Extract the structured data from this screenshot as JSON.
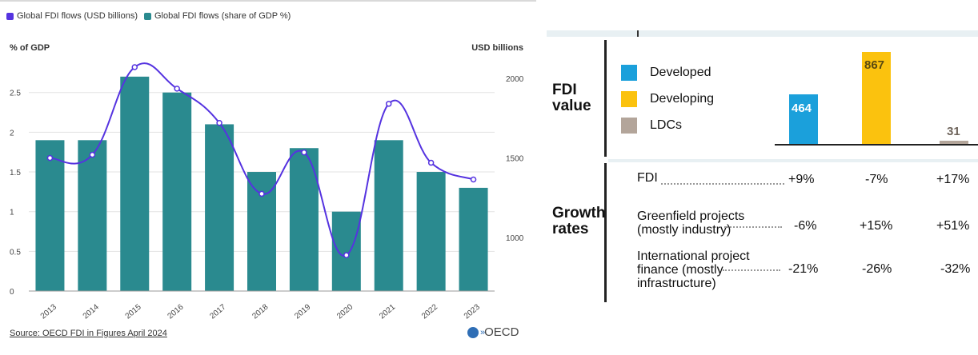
{
  "left_chart": {
    "legend": [
      {
        "label": "Global FDI flows (USD billions)",
        "color": "#5533e0"
      },
      {
        "label": "Global FDI flows (share of GDP %)",
        "color": "#2a8a8f"
      }
    ],
    "left_axis_title": "% of GDP",
    "right_axis_title": "USD billions",
    "source": "Source: OECD FDI in Figures April 2024",
    "logo_text": "OECD"
  },
  "chart_data": [
    {
      "type": "bar",
      "categories": [
        "2013",
        "2014",
        "2015",
        "2016",
        "2017",
        "2018",
        "2019",
        "2020",
        "2021",
        "2022",
        "2023"
      ],
      "series": [
        {
          "name": "Global FDI flows (share of GDP %)",
          "axis": "left",
          "type": "bar",
          "color": "#2a8a8f",
          "values": [
            1.9,
            1.9,
            2.7,
            2.5,
            2.1,
            1.5,
            1.8,
            1.0,
            1.9,
            1.5,
            1.3
          ]
        },
        {
          "name": "Global FDI flows (USD billions)",
          "axis": "right",
          "type": "line",
          "color": "#5533e0",
          "values": [
            1500,
            1520,
            2070,
            1935,
            1720,
            1275,
            1535,
            890,
            1840,
            1470,
            1365
          ]
        }
      ],
      "left_ylim": [
        0,
        2.9
      ],
      "left_ticks": [
        0,
        0.5,
        1,
        1.5,
        2,
        2.5
      ],
      "right_ylim": [
        665,
        2110
      ],
      "right_ticks": [
        1000,
        1500,
        2000
      ],
      "grid": true
    },
    {
      "type": "bar",
      "title": "FDI value",
      "categories": [
        "Developed",
        "Developing",
        "LDCs"
      ],
      "values": [
        464,
        867,
        31
      ],
      "colors": [
        "#1ba0db",
        "#fbc20e",
        "#b3a59a"
      ]
    }
  ],
  "right_panel": {
    "fdi_title": [
      "FDI",
      "value"
    ],
    "legend": [
      {
        "label": "Developed",
        "color": "#1ba0db"
      },
      {
        "label": "Developing",
        "color": "#fbc20e"
      },
      {
        "label": "LDCs",
        "color": "#b3a59a"
      }
    ],
    "bar_labels": [
      "464",
      "867",
      "31"
    ],
    "growth_title": [
      "Growth",
      "rates"
    ],
    "growth_rows": [
      {
        "label": [
          "FDI"
        ],
        "values": [
          "+9%",
          "-7%",
          "+17%"
        ]
      },
      {
        "label": [
          "Greenfield projects",
          "(mostly industry)"
        ],
        "values": [
          "-6%",
          "+15%",
          "+51%"
        ]
      },
      {
        "label": [
          "International project",
          "finance (mostly",
          "infrastructure)"
        ],
        "values": [
          "-21%",
          "-26%",
          "-32%"
        ]
      }
    ]
  }
}
